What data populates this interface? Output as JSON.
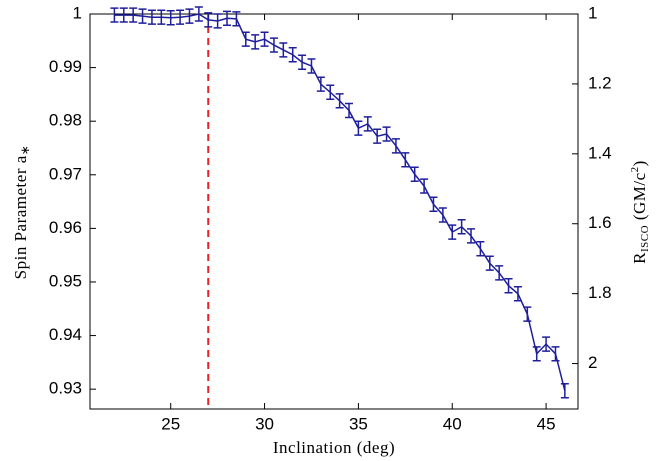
{
  "chart_data": {
    "type": "line",
    "xlabel": "Inclination (deg)",
    "ylabel": [
      "Spin Parameter a",
      "∗"
    ],
    "y2label": [
      "R",
      "ISCO",
      " (GM/c",
      "2",
      ")"
    ],
    "x": [
      22,
      22.5,
      23,
      23.5,
      24,
      24.5,
      25,
      25.5,
      26,
      26.5,
      27,
      27.5,
      28,
      28.5,
      29,
      29.5,
      30,
      30.5,
      31,
      31.5,
      32,
      32.5,
      33,
      33.5,
      34,
      34.5,
      35,
      35.5,
      36,
      36.5,
      37,
      37.5,
      38,
      38.5,
      39,
      39.5,
      40,
      40.5,
      41,
      41.5,
      42,
      42.5,
      43,
      43.5,
      44,
      44.5,
      45,
      45.5,
      46
    ],
    "series": [
      {
        "color": "#1f1f9c",
        "values": [
          0.9998,
          0.9998,
          0.9998,
          0.9996,
          0.9994,
          0.9994,
          0.9993,
          0.9994,
          0.9996,
          1.0,
          0.9989,
          0.9987,
          0.9992,
          0.9991,
          0.9953,
          0.9948,
          0.9953,
          0.9942,
          0.9933,
          0.9924,
          0.991,
          0.9903,
          0.9869,
          0.9854,
          0.9838,
          0.982,
          0.9787,
          0.9795,
          0.9772,
          0.9776,
          0.9754,
          0.9728,
          0.9701,
          0.9679,
          0.9645,
          0.9625,
          0.9593,
          0.9603,
          0.9586,
          0.9562,
          0.9535,
          0.9517,
          0.9493,
          0.9478,
          0.944,
          0.9366,
          0.9384,
          0.9366,
          0.9297
        ],
        "errors": [
          0.0013,
          0.0013,
          0.0013,
          0.0013,
          0.0013,
          0.0013,
          0.0013,
          0.0013,
          0.0013,
          0.0013,
          0.0013,
          0.0013,
          0.0013,
          0.0013,
          0.0013,
          0.0013,
          0.0013,
          0.0013,
          0.0013,
          0.0013,
          0.0013,
          0.0013,
          0.0013,
          0.0013,
          0.0013,
          0.0013,
          0.0013,
          0.0013,
          0.0013,
          0.0013,
          0.0013,
          0.0013,
          0.0013,
          0.0013,
          0.0013,
          0.0013,
          0.0013,
          0.0013,
          0.0013,
          0.0013,
          0.0013,
          0.0013,
          0.0013,
          0.0013,
          0.0013,
          0.0013,
          0.0013,
          0.0013,
          0.0013
        ]
      }
    ],
    "vline": {
      "x": 27,
      "color": "#e8202a"
    },
    "xlim": [
      20.7,
      46.7
    ],
    "xticks": [
      25,
      30,
      35,
      40,
      45
    ],
    "ylim": [
      0.9263,
      1
    ],
    "yticks": [
      0.93,
      0.94,
      0.95,
      0.96,
      0.97,
      0.98,
      0.99,
      1
    ],
    "y2lim": [
      1,
      2.13
    ],
    "y2ticks": [
      1,
      1.2,
      1.4,
      1.6,
      1.8,
      2
    ]
  }
}
